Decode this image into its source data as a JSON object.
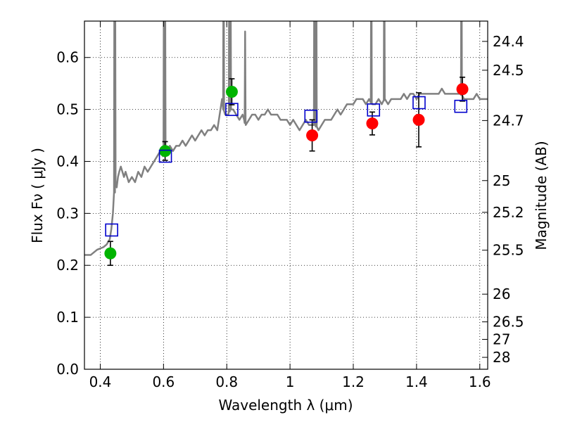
{
  "chart_data": {
    "type": "scatter",
    "xlabel": "Wavelength  λ (μm)",
    "ylabel": "Flux  Fν  ( μJy )",
    "y2label": "Magnitude (AB)",
    "xlim": [
      0.35,
      1.625
    ],
    "ylim": [
      0.0,
      0.67
    ],
    "grid": true,
    "x_ticks": [
      0.4,
      0.6,
      0.8,
      1.0,
      1.2,
      1.4,
      1.6
    ],
    "x_tick_labels": [
      "0.4",
      "0.6",
      "0.8",
      "1",
      "1.2",
      "1.4",
      "1.6"
    ],
    "y_ticks": [
      0.0,
      0.1,
      0.2,
      0.3,
      0.4,
      0.5,
      0.6
    ],
    "y_tick_labels": [
      "0.0",
      "0.1",
      "0.2",
      "0.3",
      "0.4",
      "0.5",
      "0.6"
    ],
    "mag_ticks": [
      24.4,
      24.5,
      24.7,
      25,
      25.2,
      25.5,
      26,
      26.5,
      27,
      28
    ],
    "mag_tick_labels": [
      "24.4",
      "24.5",
      "24.7",
      "25",
      "25.2",
      "25.5",
      "26",
      "26.5",
      "27",
      "28"
    ],
    "series": [
      {
        "kind": "line",
        "color": "#808080",
        "x": [
          0.35,
          0.37,
          0.39,
          0.41,
          0.42,
          0.425,
          0.43,
          0.435,
          0.44,
          0.445,
          0.448,
          0.452,
          0.456,
          0.46,
          0.465,
          0.47,
          0.475,
          0.48,
          0.49,
          0.5,
          0.51,
          0.52,
          0.53,
          0.54,
          0.55,
          0.56,
          0.57,
          0.58,
          0.59,
          0.598,
          0.6,
          0.602,
          0.604,
          0.61,
          0.62,
          0.63,
          0.64,
          0.65,
          0.66,
          0.67,
          0.68,
          0.69,
          0.7,
          0.71,
          0.72,
          0.73,
          0.74,
          0.75,
          0.76,
          0.77,
          0.78,
          0.785,
          0.79,
          0.795,
          0.805,
          0.81,
          0.812,
          0.815,
          0.82,
          0.83,
          0.84,
          0.85,
          0.855,
          0.86,
          0.87,
          0.88,
          0.89,
          0.9,
          0.91,
          0.92,
          0.93,
          0.94,
          0.95,
          0.96,
          0.97,
          0.98,
          0.99,
          1.0,
          1.01,
          1.02,
          1.03,
          1.04,
          1.05,
          1.06,
          1.07,
          1.075,
          1.08,
          1.09,
          1.1,
          1.11,
          1.12,
          1.13,
          1.14,
          1.15,
          1.16,
          1.17,
          1.18,
          1.19,
          1.2,
          1.21,
          1.22,
          1.23,
          1.24,
          1.25,
          1.26,
          1.27,
          1.28,
          1.29,
          1.3,
          1.31,
          1.32,
          1.33,
          1.34,
          1.35,
          1.36,
          1.37,
          1.38,
          1.39,
          1.4,
          1.41,
          1.42,
          1.43,
          1.44,
          1.45,
          1.46,
          1.47,
          1.48,
          1.49,
          1.5,
          1.51,
          1.52,
          1.53,
          1.54,
          1.55,
          1.56,
          1.57,
          1.58,
          1.59,
          1.6,
          1.625
        ],
        "y": [
          0.22,
          0.22,
          0.23,
          0.235,
          0.24,
          0.245,
          0.25,
          0.27,
          0.3,
          0.34,
          0.36,
          0.35,
          0.37,
          0.38,
          0.39,
          0.38,
          0.37,
          0.38,
          0.36,
          0.37,
          0.36,
          0.38,
          0.37,
          0.39,
          0.38,
          0.39,
          0.4,
          0.41,
          0.42,
          0.41,
          0.415,
          0.42,
          0.41,
          0.42,
          0.43,
          0.42,
          0.43,
          0.43,
          0.44,
          0.43,
          0.44,
          0.45,
          0.44,
          0.45,
          0.46,
          0.45,
          0.46,
          0.46,
          0.47,
          0.46,
          0.5,
          0.52,
          0.5,
          0.49,
          0.49,
          0.5,
          0.5,
          0.5,
          0.5,
          0.49,
          0.48,
          0.49,
          0.48,
          0.47,
          0.48,
          0.49,
          0.49,
          0.48,
          0.49,
          0.49,
          0.5,
          0.49,
          0.49,
          0.49,
          0.48,
          0.48,
          0.48,
          0.47,
          0.48,
          0.47,
          0.46,
          0.47,
          0.48,
          0.47,
          0.47,
          0.47,
          0.47,
          0.46,
          0.47,
          0.48,
          0.48,
          0.48,
          0.49,
          0.5,
          0.49,
          0.5,
          0.51,
          0.51,
          0.51,
          0.52,
          0.52,
          0.52,
          0.51,
          0.52,
          0.51,
          0.51,
          0.52,
          0.51,
          0.52,
          0.51,
          0.52,
          0.52,
          0.52,
          0.52,
          0.53,
          0.52,
          0.53,
          0.53,
          0.52,
          0.53,
          0.53,
          0.53,
          0.53,
          0.53,
          0.53,
          0.53,
          0.54,
          0.53,
          0.53,
          0.53,
          0.53,
          0.53,
          0.53,
          0.52,
          0.52,
          0.52,
          0.52,
          0.53,
          0.52,
          0.52
        ]
      },
      {
        "kind": "points",
        "marker": "circle",
        "color": "#00b400",
        "x": [
          0.432,
          0.605,
          0.816
        ],
        "y": [
          0.223,
          0.42,
          0.534
        ],
        "yerr": [
          0.023,
          0.018,
          0.025
        ]
      },
      {
        "kind": "points",
        "marker": "circle",
        "color": "#ff0000",
        "x": [
          1.07,
          1.26,
          1.407,
          1.545
        ],
        "y": [
          0.45,
          0.473,
          0.48,
          0.539
        ],
        "yerr": [
          0.03,
          0.022,
          0.052,
          0.023
        ]
      },
      {
        "kind": "points",
        "marker": "square",
        "color": "#0000cc",
        "x": [
          0.436,
          0.606,
          0.816,
          1.066,
          1.264,
          1.408,
          1.54
        ],
        "y": [
          0.268,
          0.41,
          0.5,
          0.487,
          0.499,
          0.513,
          0.506
        ]
      }
    ],
    "emission_spikes": [
      {
        "x": 0.445,
        "peak": 0.9
      },
      {
        "x": 0.447,
        "peak": 0.8
      },
      {
        "x": 0.6015,
        "peak": 0.9
      },
      {
        "x": 0.605,
        "peak": 0.8
      },
      {
        "x": 0.79,
        "peak": 0.9
      },
      {
        "x": 0.808,
        "peak": 0.9
      },
      {
        "x": 0.812,
        "peak": 0.8
      },
      {
        "x": 0.858,
        "peak": 0.65
      },
      {
        "x": 1.077,
        "peak": 0.9
      },
      {
        "x": 1.083,
        "peak": 0.85
      },
      {
        "x": 1.257,
        "peak": 0.9
      },
      {
        "x": 1.298,
        "peak": 0.9
      },
      {
        "x": 1.542,
        "peak": 0.9
      }
    ]
  }
}
